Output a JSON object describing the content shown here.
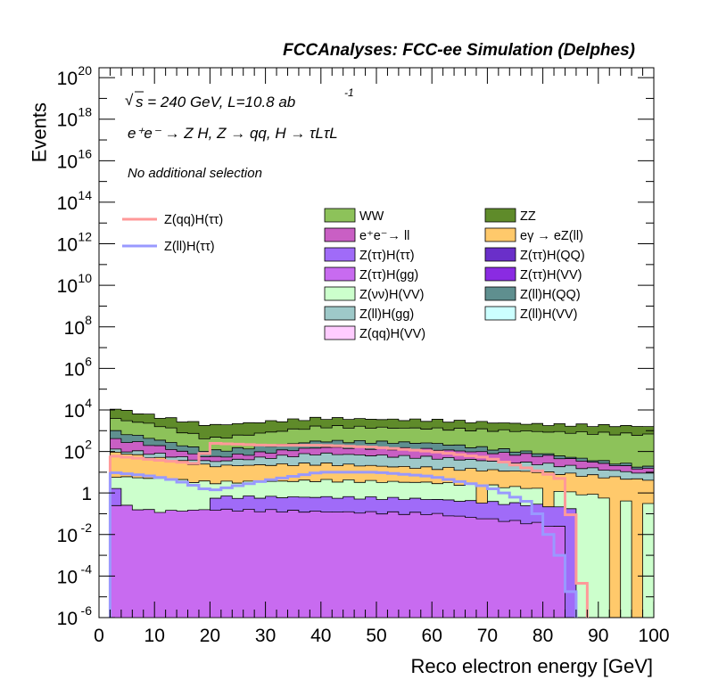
{
  "header": {
    "title": "FCCAnalyses: FCC-ee Simulation (Delphes)",
    "sqrt_s_label": "s = 240 GeV, L=10.8 ab",
    "lumi_exp": "-1",
    "process_label": "e⁺e⁻ → Z H, Z → qq, H → τLτL",
    "selection_label": "No additional selection"
  },
  "chart_data": {
    "type": "area",
    "xlabel": "Reco electron energy [GeV]",
    "ylabel": "Events",
    "xlim": [
      0,
      100
    ],
    "ylim": [
      1e-06,
      3e+20
    ],
    "yscale": "log",
    "x_ticks": [
      "0",
      "10",
      "20",
      "30",
      "40",
      "50",
      "60",
      "70",
      "80",
      "90",
      "100"
    ],
    "y_ticks": [
      {
        "base": "10",
        "exp": "-6"
      },
      {
        "base": "10",
        "exp": "-4"
      },
      {
        "base": "10",
        "exp": "-2"
      },
      {
        "base": "1",
        "exp": ""
      },
      {
        "base": "10",
        "exp": "2"
      },
      {
        "base": "10",
        "exp": "4"
      },
      {
        "base": "10",
        "exp": "6"
      },
      {
        "base": "10",
        "exp": "8"
      },
      {
        "base": "10",
        "exp": "10"
      },
      {
        "base": "10",
        "exp": "12"
      },
      {
        "base": "10",
        "exp": "14"
      },
      {
        "base": "10",
        "exp": "16"
      },
      {
        "base": "10",
        "exp": "18"
      },
      {
        "base": "10",
        "exp": "20"
      }
    ],
    "stack_edges": [
      0,
      2,
      20,
      100
    ],
    "stack_top_log10": [
      {
        "x": 0,
        "v": -6
      },
      {
        "x": 2,
        "v": 4.1
      },
      {
        "x": 4,
        "v": 4.0
      },
      {
        "x": 8,
        "v": 3.8
      },
      {
        "x": 12,
        "v": 3.6
      },
      {
        "x": 16,
        "v": 3.4
      },
      {
        "x": 20,
        "v": 3.2
      },
      {
        "x": 24,
        "v": 3.4
      },
      {
        "x": 30,
        "v": 3.6
      },
      {
        "x": 40,
        "v": 3.75
      },
      {
        "x": 50,
        "v": 3.75
      },
      {
        "x": 60,
        "v": 3.65
      },
      {
        "x": 70,
        "v": 3.5
      },
      {
        "x": 80,
        "v": 3.45
      },
      {
        "x": 88,
        "v": 3.4
      },
      {
        "x": 96,
        "v": 3.3
      },
      {
        "x": 100,
        "v": 3.3
      }
    ],
    "stack_levels_log10": {
      "ZZ": [
        [
          2,
          4.1
        ],
        [
          10,
          3.7
        ],
        [
          20,
          3.25
        ],
        [
          40,
          3.6
        ],
        [
          60,
          3.5
        ],
        [
          80,
          3.3
        ],
        [
          100,
          3.2
        ]
      ],
      "WW": [
        [
          2,
          3.6
        ],
        [
          10,
          3.3
        ],
        [
          20,
          2.6
        ],
        [
          40,
          3.2
        ],
        [
          60,
          3.1
        ],
        [
          80,
          2.95
        ],
        [
          100,
          2.8
        ]
      ],
      "Z(ll)H(QQ)": [
        [
          2,
          3.0
        ],
        [
          10,
          2.6
        ],
        [
          20,
          2.0
        ],
        [
          40,
          2.5
        ],
        [
          60,
          2.4
        ],
        [
          80,
          1.9
        ],
        [
          100,
          1.2
        ]
      ],
      "ee_ll": [
        [
          2,
          2.6
        ],
        [
          10,
          2.3
        ],
        [
          20,
          1.7
        ],
        [
          40,
          2.2
        ],
        [
          60,
          2.1
        ],
        [
          80,
          1.8
        ],
        [
          100,
          1.1
        ]
      ],
      "Z(ll)H(gg)": [
        [
          2,
          2.1
        ],
        [
          10,
          1.9
        ],
        [
          20,
          1.5
        ],
        [
          40,
          1.9
        ],
        [
          60,
          1.7
        ],
        [
          80,
          1.4
        ],
        [
          100,
          0.9
        ]
      ],
      "egamma": [
        [
          2,
          2.0
        ],
        [
          10,
          1.7
        ],
        [
          20,
          1.3
        ],
        [
          40,
          1.4
        ],
        [
          60,
          1.2
        ],
        [
          80,
          1.0
        ],
        [
          100,
          0.6
        ]
      ],
      "Z(vv)H(VV)": [
        [
          2,
          0.8
        ],
        [
          10,
          0.7
        ],
        [
          20,
          0.5
        ],
        [
          40,
          0.6
        ],
        [
          60,
          0.5
        ],
        [
          80,
          0.2
        ],
        [
          100,
          -0.5
        ]
      ],
      "Z(tt)H(VV)": [
        [
          2,
          0.3
        ],
        [
          10,
          0.1
        ],
        [
          20,
          -0.2
        ],
        [
          40,
          -0.2
        ],
        [
          60,
          -0.3
        ],
        [
          80,
          -0.6
        ],
        [
          100,
          -1.2
        ]
      ],
      "Z(tt)H(gg)": [
        [
          2,
          -0.5
        ],
        [
          10,
          -0.9
        ],
        [
          20,
          -0.8
        ],
        [
          40,
          -0.9
        ],
        [
          60,
          -1.0
        ],
        [
          80,
          -1.5
        ],
        [
          100,
          -2.5
        ]
      ]
    },
    "series": [
      {
        "name": "WW",
        "color": "#8dc25a"
      },
      {
        "name": "ZZ",
        "color": "#5f8b2a"
      },
      {
        "name": "e⁺e⁻→ ll",
        "color": "#c95fc4"
      },
      {
        "name": "eγ → eZ(ll)",
        "color": "#ffc96b"
      },
      {
        "name": "Z(ττ)H(ττ)",
        "color": "#a06bf8"
      },
      {
        "name": "Z(ττ)H(QQ)",
        "color": "#6a2fc9"
      },
      {
        "name": "Z(ττ)H(gg)",
        "color": "#c86bf0"
      },
      {
        "name": "Z(ττ)H(VV)",
        "color": "#8a2be2"
      },
      {
        "name": "Z(νν)H(VV)",
        "color": "#ccffcc"
      },
      {
        "name": "Z(ll)H(QQ)",
        "color": "#5f8f8f"
      },
      {
        "name": "Z(ll)H(gg)",
        "color": "#9ec9c9"
      },
      {
        "name": "Z(ll)H(VV)",
        "color": "#ccffff"
      },
      {
        "name": "Z(qq)H(VV)",
        "color": "#ffccff"
      }
    ],
    "signal": [
      {
        "name": "Z(qq)H(ττ)",
        "color": "#ff9999",
        "points": [
          [
            2,
            1.8
          ],
          [
            6,
            1.7
          ],
          [
            10,
            1.6
          ],
          [
            14,
            1.5
          ],
          [
            18,
            1.4
          ],
          [
            20,
            2.4
          ],
          [
            30,
            2.3
          ],
          [
            40,
            2.3
          ],
          [
            50,
            2.2
          ],
          [
            60,
            2.0
          ],
          [
            70,
            1.7
          ],
          [
            80,
            1.0
          ],
          [
            84,
            0.6
          ],
          [
            88,
            -6
          ]
        ]
      },
      {
        "name": "Z(ll)H(ττ)",
        "color": "#9999ff",
        "points": [
          [
            2,
            1.0
          ],
          [
            6,
            0.9
          ],
          [
            10,
            0.8
          ],
          [
            14,
            0.6
          ],
          [
            18,
            0.3
          ],
          [
            20,
            0.1
          ],
          [
            30,
            0.6
          ],
          [
            40,
            1.0
          ],
          [
            50,
            1.0
          ],
          [
            60,
            0.8
          ],
          [
            70,
            0.3
          ],
          [
            78,
            -0.5
          ],
          [
            80,
            -1.5
          ],
          [
            82,
            -2.5
          ],
          [
            84,
            -3.5
          ],
          [
            86,
            -6
          ]
        ]
      }
    ]
  }
}
